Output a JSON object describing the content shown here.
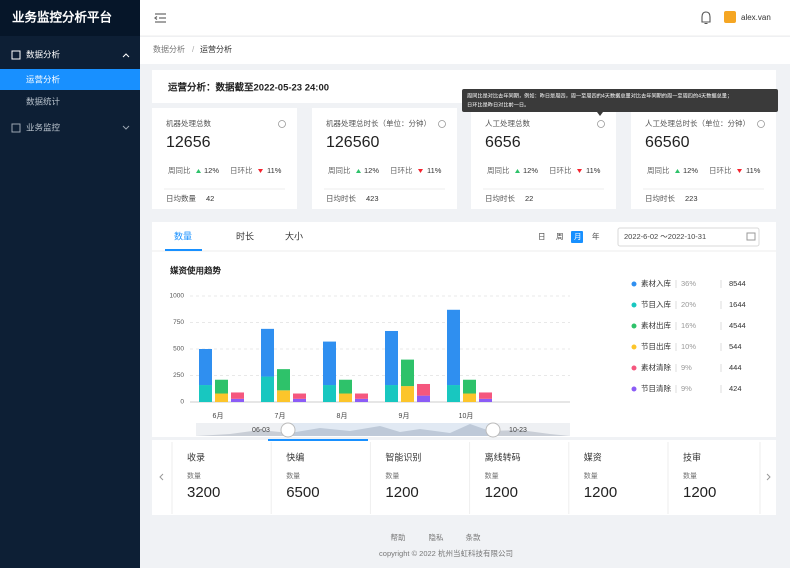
{
  "sidebar": {
    "title": "业务监控分析平台",
    "menu": [
      {
        "label": "数据分析",
        "children": [
          "运营分析",
          "数据统计"
        ]
      },
      {
        "label": "业务监控"
      }
    ]
  },
  "header": {
    "user": "alex.van"
  },
  "breadcrumb": [
    "数据分析",
    "运营分析"
  ],
  "heading": "运营分析：数据截至2022-05-23 24:00",
  "tooltip": [
    "周同比是对比去年同期，例如：昨日是周四，周一至周四的4天数据总量对比去年同期的周一至周四的4天数据总量；",
    "日环比是昨日对比前一日。"
  ],
  "cards": [
    {
      "title": "机器处理总数",
      "value": 12656,
      "wow_label": "周同比",
      "wow": "12%",
      "dod_label": "日环比",
      "dod": "11%",
      "footer_label": "日均数量",
      "footer_value": 42
    },
    {
      "title": "机器处理总时长（单位：分钟）",
      "value": 126560,
      "wow_label": "周同比",
      "wow": "12%",
      "dod_label": "日环比",
      "dod": "11%",
      "footer_label": "日均时长",
      "footer_value": 423
    },
    {
      "title": "人工处理总数",
      "value": 6656,
      "wow_label": "周同比",
      "wow": "12%",
      "dod_label": "日环比",
      "dod": "11%",
      "footer_label": "日均时长",
      "footer_value": 22
    },
    {
      "title": "人工处理总时长（单位：分钟）",
      "value": 66560,
      "wow_label": "周同比",
      "wow": "12%",
      "dod_label": "日环比",
      "dod": "11%",
      "footer_label": "日均时长",
      "footer_value": 223
    }
  ],
  "tabs": [
    "数量",
    "时长",
    "大小"
  ],
  "periods": [
    "日",
    "周",
    "月",
    "年"
  ],
  "date_range": "2022-6-02 ～2022-10-31",
  "chart_data": {
    "type": "bar",
    "title": "媒资使用趋势",
    "categories": [
      "6月",
      "7月",
      "8月",
      "9月",
      "10月"
    ],
    "series": [
      {
        "name": "素材入库",
        "color": "#2f8ff0",
        "share": "36%",
        "total": 8544,
        "values": [
          340,
          450,
          410,
          510,
          710
        ]
      },
      {
        "name": "节目入库",
        "color": "#18c7c0",
        "share": "20%",
        "total": 1644,
        "values": [
          160,
          240,
          160,
          160,
          160
        ]
      },
      {
        "name": "素材出库",
        "color": "#2ec26a",
        "share": "16%",
        "total": 4544,
        "values": [
          130,
          200,
          130,
          250,
          130
        ]
      },
      {
        "name": "节目出库",
        "color": "#fcc52b",
        "share": "10%",
        "total": 544,
        "values": [
          80,
          110,
          80,
          150,
          80
        ]
      },
      {
        "name": "素材清除",
        "color": "#f5577e",
        "share": "9%",
        "total": 444,
        "values": [
          60,
          50,
          50,
          110,
          60
        ]
      },
      {
        "name": "节目清除",
        "color": "#8b5cf6",
        "share": "9%",
        "total": 424,
        "values": [
          30,
          30,
          30,
          60,
          30
        ]
      }
    ],
    "ylim": [
      0,
      1000
    ],
    "yticks": [
      0,
      250,
      500,
      750,
      1000
    ],
    "grid": true,
    "zoom_labels": [
      "06-03",
      "10-23"
    ]
  },
  "stats": [
    {
      "title": "收录",
      "label": "数量",
      "value": 3200
    },
    {
      "title": "快编",
      "label": "数量",
      "value": 6500
    },
    {
      "title": "智能识别",
      "label": "数量",
      "value": 1200
    },
    {
      "title": "离线转码",
      "label": "数量",
      "value": 1200
    },
    {
      "title": "媒资",
      "label": "数量",
      "value": 1200
    },
    {
      "title": "技审",
      "label": "数量",
      "value": 1200
    }
  ],
  "footer": {
    "links": [
      "帮助",
      "隐私",
      "条款"
    ],
    "copyright": "copyright © 2022 杭州当虹科技有限公司"
  }
}
